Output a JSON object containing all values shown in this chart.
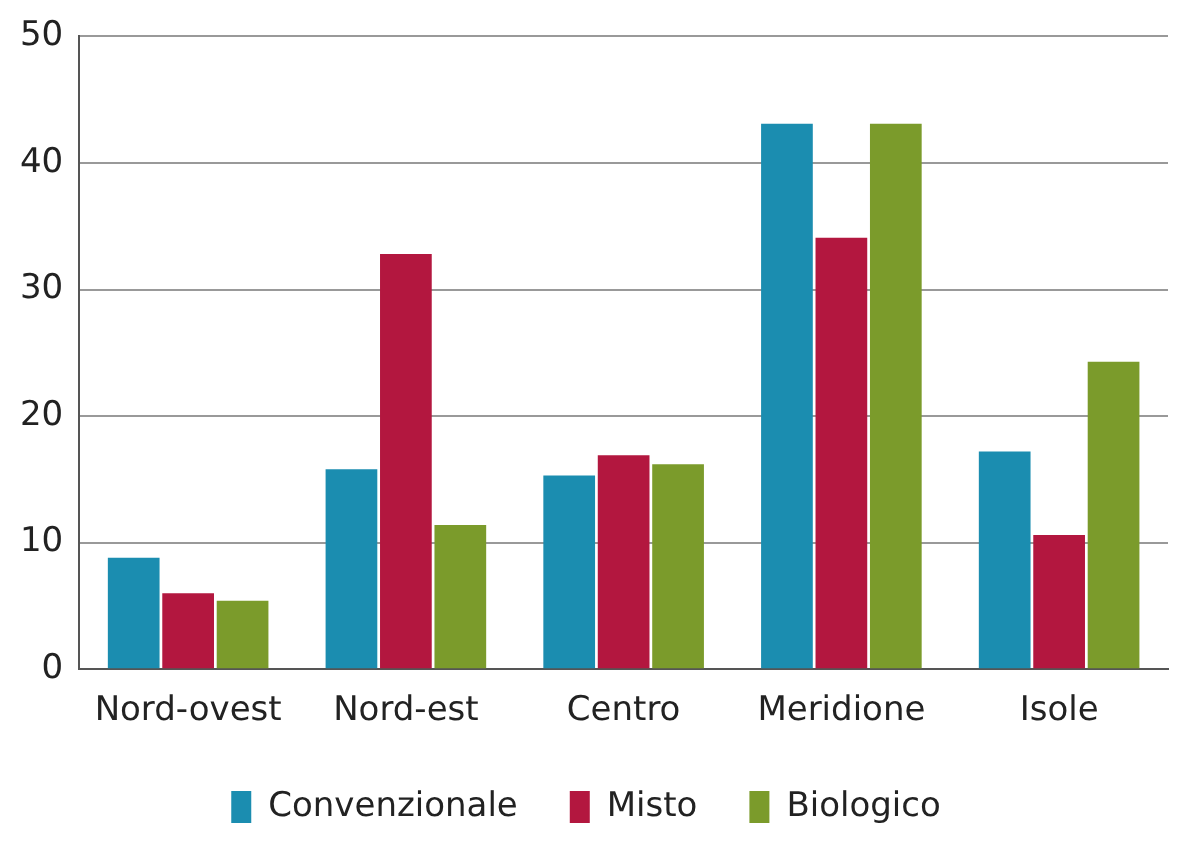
{
  "chart_data": {
    "type": "bar",
    "categories": [
      "Nord-ovest",
      "Nord-est",
      "Centro",
      "Meridione",
      "Isole"
    ],
    "series": [
      {
        "name": "Convenzionale",
        "color": "#1b8db0",
        "values": [
          8.8,
          15.8,
          15.3,
          43.1,
          17.2
        ]
      },
      {
        "name": "Misto",
        "color": "#b3173f",
        "values": [
          6.0,
          32.8,
          16.9,
          34.1,
          10.6
        ]
      },
      {
        "name": "Biologico",
        "color": "#7b9b2b",
        "values": [
          5.4,
          11.4,
          16.2,
          43.1,
          24.3
        ]
      }
    ],
    "ylim": [
      0,
      50
    ],
    "yticks": [
      0,
      10,
      20,
      30,
      40,
      50
    ],
    "grid": "y",
    "legend": "bottom"
  }
}
